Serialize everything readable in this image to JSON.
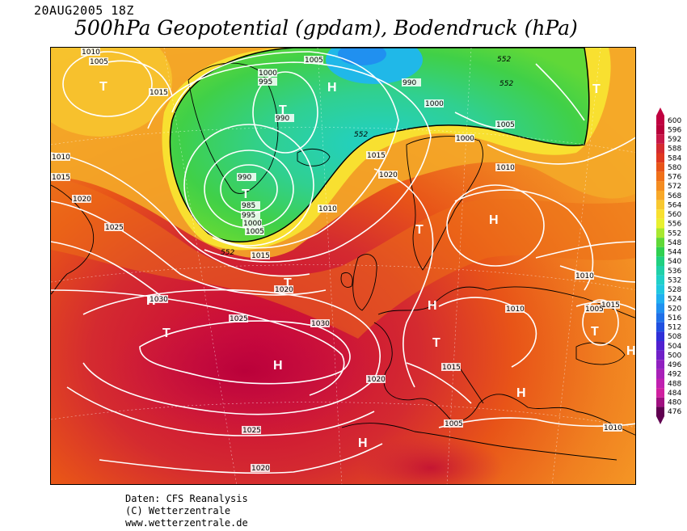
{
  "header": {
    "date": "20AUG2005 18Z",
    "title": "500hPa Geopotential (gpdam), Bodendruck (hPa)"
  },
  "footer": {
    "source": "Daten: CFS Reanalysis",
    "copyright": "(C) Wetterzentrale",
    "url": "www.wetterzentrale.de"
  },
  "colorbar": {
    "levels": [
      "600",
      "596",
      "592",
      "588",
      "584",
      "580",
      "576",
      "572",
      "568",
      "564",
      "560",
      "556",
      "552",
      "548",
      "544",
      "540",
      "536",
      "532",
      "528",
      "524",
      "520",
      "516",
      "512",
      "508",
      "504",
      "500",
      "496",
      "492",
      "488",
      "484",
      "480",
      "476"
    ],
    "colors": [
      "#c00040",
      "#b8003a",
      "#c81848",
      "#d42a30",
      "#e03820",
      "#e85418",
      "#f07018",
      "#f48c20",
      "#f8a828",
      "#f8c830",
      "#f8e030",
      "#e8f030",
      "#a8e830",
      "#60d838",
      "#30d050",
      "#20d080",
      "#20d0a8",
      "#20d0c8",
      "#20c8e0",
      "#20b0f0",
      "#2090f0",
      "#2070e8",
      "#2050e0",
      "#3030d8",
      "#5020d0",
      "#7020c8",
      "#9020c0",
      "#a820b8",
      "#c020b0",
      "#d020a0",
      "#a01080",
      "#600050"
    ]
  },
  "map_labels": {
    "lows": [
      "T",
      "T",
      "T",
      "T",
      "T",
      "T",
      "T",
      "T",
      "T"
    ],
    "highs": [
      "H",
      "H",
      "H",
      "H",
      "H",
      "H",
      "H",
      "H",
      "H"
    ],
    "isobars": [
      "1010",
      "1005",
      "1015",
      "1010",
      "1015",
      "1020",
      "1025",
      "1030",
      "1025",
      "1025",
      "1020",
      "1020",
      "1015",
      "1020",
      "1015",
      "1010",
      "1005",
      "1000",
      "995",
      "990",
      "985",
      "995",
      "1000",
      "1005",
      "990",
      "1000",
      "1005",
      "1010",
      "1015",
      "1020",
      "1005",
      "1000",
      "990",
      "1010",
      "1005",
      "1015",
      "1020",
      "1015",
      "1010",
      "1010",
      "1005",
      "1005",
      "1015",
      "1010",
      "1000",
      "1030",
      "1020",
      "1020",
      "1025",
      "1015"
    ],
    "geopotential": [
      "552",
      "552",
      "552",
      "552"
    ]
  }
}
